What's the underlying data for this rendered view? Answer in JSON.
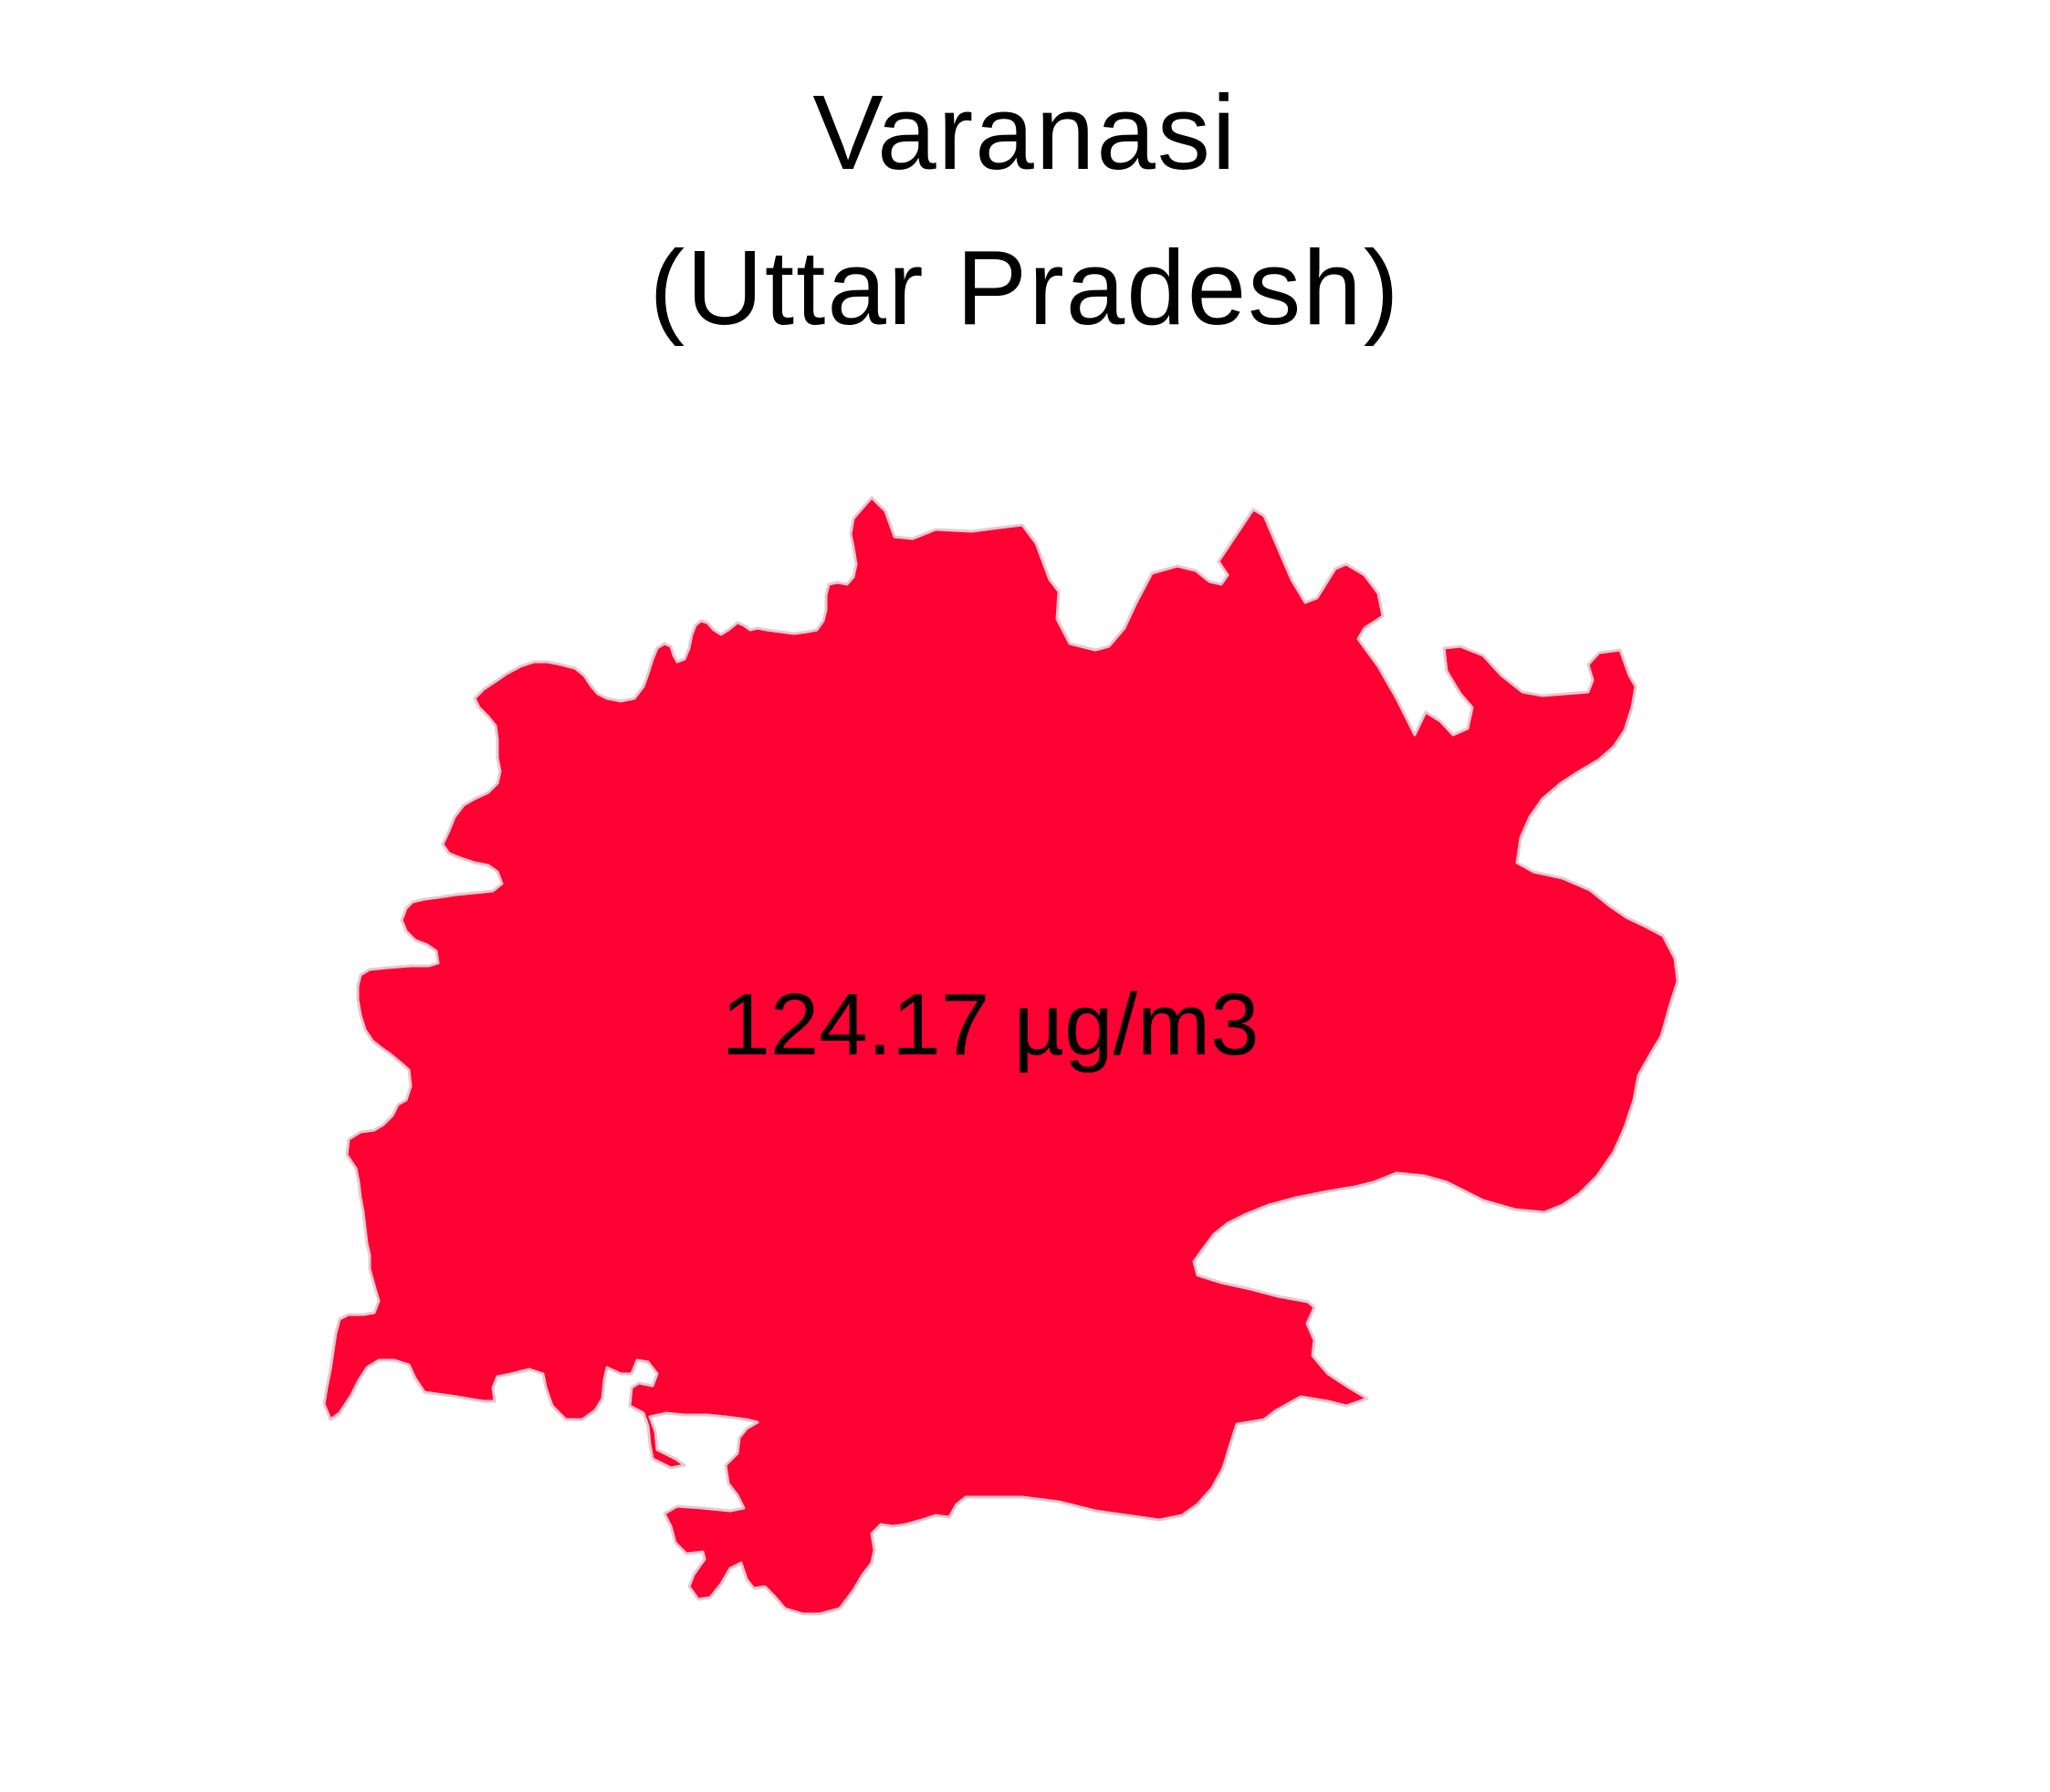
{
  "title": {
    "line1": "Varanasi",
    "line2": "(Uttar Pradesh)"
  },
  "region": {
    "name": "Varanasi",
    "state": "Uttar Pradesh",
    "value_label": "124.17 µg/m3",
    "fill_color": "#FF0033",
    "stroke_color": "#E8C8D0"
  }
}
